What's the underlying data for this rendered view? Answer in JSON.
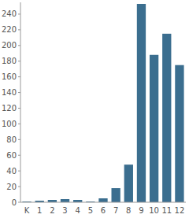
{
  "chart_data": {
    "type": "bar",
    "categories": [
      "K",
      "1",
      "2",
      "3",
      "4",
      "5",
      "6",
      "7",
      "8",
      "9",
      "10",
      "11",
      "12"
    ],
    "values": [
      1,
      2,
      3,
      4,
      3,
      1,
      5,
      18,
      48,
      253,
      188,
      215,
      175
    ],
    "color": "#3b6e8f",
    "ylim": [
      0,
      255
    ],
    "yticks": [
      0,
      20,
      40,
      60,
      80,
      100,
      120,
      140,
      160,
      180,
      200,
      220,
      240
    ],
    "grid": false
  }
}
